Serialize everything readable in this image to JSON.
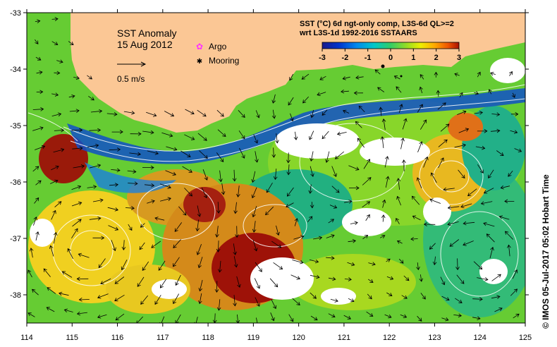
{
  "map": {
    "title": "SST Anomaly",
    "date": "15 Aug 2012",
    "vector_scale_label": "0.5 m/s",
    "legend": {
      "argo_label": "Argo",
      "mooring_label": "Mooring",
      "argo_color": "#ff33ff",
      "mooring_color": "#000000"
    },
    "product_line1": "SST (°C) 6d ngt-only comp, L3S-6d QL>=2",
    "product_line2": "wrt L3S-1d 1992-2016 SSTAARS",
    "colorbar": {
      "ticks": [
        "-3",
        "-2",
        "-1",
        "0",
        "1",
        "2",
        "3"
      ],
      "colors": [
        "#1a1a8a",
        "#0033cc",
        "#0088ee",
        "#00c8c8",
        "#33cc66",
        "#99dd22",
        "#eeee00",
        "#ffaa00",
        "#ee5500",
        "#aa1100"
      ]
    },
    "credit": "© IMOS 05-Jul-2017 05:02 Hobart Time",
    "x_ticks": [
      "114",
      "115",
      "116",
      "117",
      "118",
      "119",
      "120",
      "121",
      "122",
      "123",
      "124",
      "125"
    ],
    "y_ticks": [
      "-33",
      "-34",
      "-35",
      "-36",
      "-37",
      "-38"
    ],
    "land_color": "#fbc795",
    "no_data_color": "#ffffff"
  }
}
